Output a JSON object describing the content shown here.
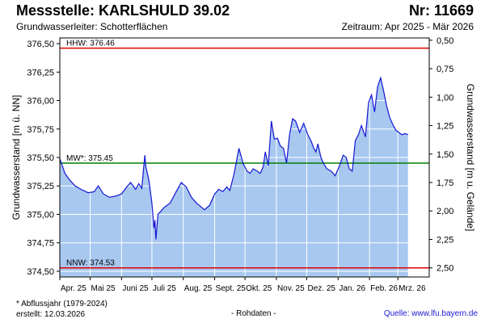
{
  "header": {
    "title": "Messstelle: KARLSHULD 39.02",
    "nr": "Nr: 11669",
    "aquifer": "Grundwasserleiter:   Schotterflächen",
    "period": "Zeitraum: Apr 2025 - Mär 2026"
  },
  "footer": {
    "footnote": "* Abflussjahr (1979-2024)",
    "created": "erstellt:  12.03.2026",
    "rawdata": "- Rohdaten -",
    "source": "Quelle: www.lfu.bayern.de"
  },
  "colors": {
    "area_fill": "#a8c8f0",
    "line": "#1414d2",
    "hhw": "#e00000",
    "mw": "#008000",
    "nnw": "#e00000",
    "grid": "#ffffff"
  },
  "chart_data": {
    "type": "area",
    "ylabel": "Grundwasserstand [m ü. NN]",
    "ylabel_right": "Grundwasserstand [m u. Gelände]",
    "ylim": [
      374.45,
      376.55
    ],
    "ylim_right": [
      2.58,
      0.48
    ],
    "yticks": [
      "376,50",
      "376,25",
      "376,00",
      "375,75",
      "375,50",
      "375,25",
      "375,00",
      "374,75",
      "374,50"
    ],
    "yticks_right": [
      "0,50",
      "0,75",
      "1,00",
      "1,25",
      "1,50",
      "1,75",
      "2,00",
      "2,25",
      "2,50"
    ],
    "yticks_values": [
      376.5,
      376.25,
      376.0,
      375.75,
      375.5,
      375.25,
      375.0,
      374.75,
      374.5
    ],
    "yticks_right_values": [
      0.5,
      0.75,
      1.0,
      1.25,
      1.5,
      1.75,
      2.0,
      2.25,
      2.5
    ],
    "xrange": [
      "2025-04-01",
      "2026-04-01"
    ],
    "xticks": [
      "Apr. 25",
      "Mai 25",
      "Juni 25",
      "Juli 25",
      "Aug. 25",
      "Sept. 25",
      "Okt. 25",
      "Nov. 25",
      "Dez. 25",
      "Jan. 26",
      "Feb. 26",
      "Mrz. 26"
    ],
    "xticks_dates": [
      "2025-04-01",
      "2025-05-01",
      "2025-06-01",
      "2025-07-01",
      "2025-08-01",
      "2025-09-01",
      "2025-10-01",
      "2025-11-01",
      "2025-12-01",
      "2026-01-01",
      "2026-02-01",
      "2026-03-01"
    ],
    "reference_lines": [
      {
        "label": "HHW: 376.46",
        "value": 376.46,
        "color": "#e00000"
      },
      {
        "label": "MW*: 375.45",
        "value": 375.45,
        "color": "#008000"
      },
      {
        "label": "NNW: 374.53",
        "value": 374.53,
        "color": "#e00000"
      }
    ],
    "grid": true,
    "series": [
      {
        "x": [
          "2025-04-01",
          "2025-04-06",
          "2025-04-11",
          "2025-04-16",
          "2025-04-22",
          "2025-04-29",
          "2025-05-05",
          "2025-05-09",
          "2025-05-14",
          "2025-05-20",
          "2025-05-26",
          "2025-06-01",
          "2025-06-06",
          "2025-06-10",
          "2025-06-15",
          "2025-06-18",
          "2025-06-21",
          "2025-06-24",
          "2025-06-25",
          "2025-06-28",
          "2025-07-01",
          "2025-07-03",
          "2025-07-04",
          "2025-07-05",
          "2025-07-07",
          "2025-07-09",
          "2025-07-13",
          "2025-07-19",
          "2025-07-25",
          "2025-07-30",
          "2025-08-04",
          "2025-08-09",
          "2025-08-14",
          "2025-08-18",
          "2025-08-22",
          "2025-08-27",
          "2025-09-01",
          "2025-09-05",
          "2025-09-09",
          "2025-09-13",
          "2025-09-16",
          "2025-09-20",
          "2025-09-25",
          "2025-09-29",
          "2025-10-03",
          "2025-10-06",
          "2025-10-09",
          "2025-10-13",
          "2025-10-16",
          "2025-10-19",
          "2025-10-21",
          "2025-10-24",
          "2025-10-27",
          "2025-10-30",
          "2025-11-02",
          "2025-11-05",
          "2025-11-08",
          "2025-11-11",
          "2025-11-14",
          "2025-11-17",
          "2025-11-20",
          "2025-11-24",
          "2025-11-28",
          "2025-12-02",
          "2025-12-05",
          "2025-12-08",
          "2025-12-10",
          "2025-12-12",
          "2025-12-15",
          "2025-12-18",
          "2025-12-21",
          "2025-12-25",
          "2025-12-29",
          "2026-01-02",
          "2026-01-06",
          "2026-01-09",
          "2026-01-12",
          "2026-01-15",
          "2026-01-18",
          "2026-01-21",
          "2026-01-24",
          "2026-01-28",
          "2026-01-31",
          "2026-02-03",
          "2026-02-06",
          "2026-02-09",
          "2026-02-12",
          "2026-02-15",
          "2026-02-18",
          "2026-02-21",
          "2026-02-24",
          "2026-02-27",
          "2026-03-02",
          "2026-03-05",
          "2026-03-08",
          "2026-03-11"
        ],
        "y": [
          375.49,
          375.36,
          375.3,
          375.25,
          375.22,
          375.19,
          375.2,
          375.25,
          375.18,
          375.15,
          375.16,
          375.18,
          375.24,
          375.28,
          375.22,
          375.27,
          375.23,
          375.52,
          375.42,
          375.3,
          375.1,
          374.88,
          374.95,
          374.78,
          375.0,
          375.02,
          375.06,
          375.1,
          375.2,
          375.28,
          375.24,
          375.15,
          375.1,
          375.07,
          375.04,
          375.08,
          375.18,
          375.22,
          375.2,
          375.24,
          375.21,
          375.35,
          375.58,
          375.45,
          375.38,
          375.36,
          375.4,
          375.38,
          375.36,
          375.42,
          375.55,
          375.43,
          375.82,
          375.66,
          375.67,
          375.6,
          375.58,
          375.45,
          375.7,
          375.84,
          375.82,
          375.72,
          375.8,
          375.7,
          375.65,
          375.58,
          375.55,
          375.62,
          375.5,
          375.44,
          375.4,
          375.38,
          375.34,
          375.42,
          375.52,
          375.5,
          375.4,
          375.38,
          375.65,
          375.7,
          375.78,
          375.68,
          375.98,
          376.05,
          375.9,
          376.12,
          376.2,
          376.08,
          375.95,
          375.85,
          375.79,
          375.74,
          375.72,
          375.7,
          375.71,
          375.7
        ]
      }
    ]
  }
}
